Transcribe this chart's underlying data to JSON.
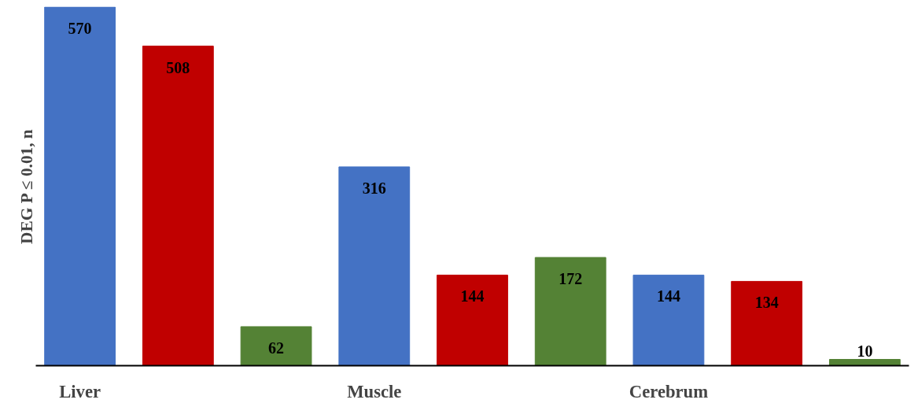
{
  "chart_data": {
    "type": "bar",
    "ylabel": "DEG P ≤ 0.01, n",
    "categories": [
      "Liver",
      null,
      null,
      "Muscle",
      null,
      null,
      "Cerebrum",
      null,
      null
    ],
    "values": [
      570,
      508,
      62,
      316,
      144,
      172,
      144,
      134,
      10
    ],
    "colors": [
      "#4472c4",
      "#c00000",
      "#548235",
      "#4472c4",
      "#c00000",
      "#548235",
      "#4472c4",
      "#c00000",
      "#548235"
    ],
    "data_labels": true,
    "grid": false
  }
}
